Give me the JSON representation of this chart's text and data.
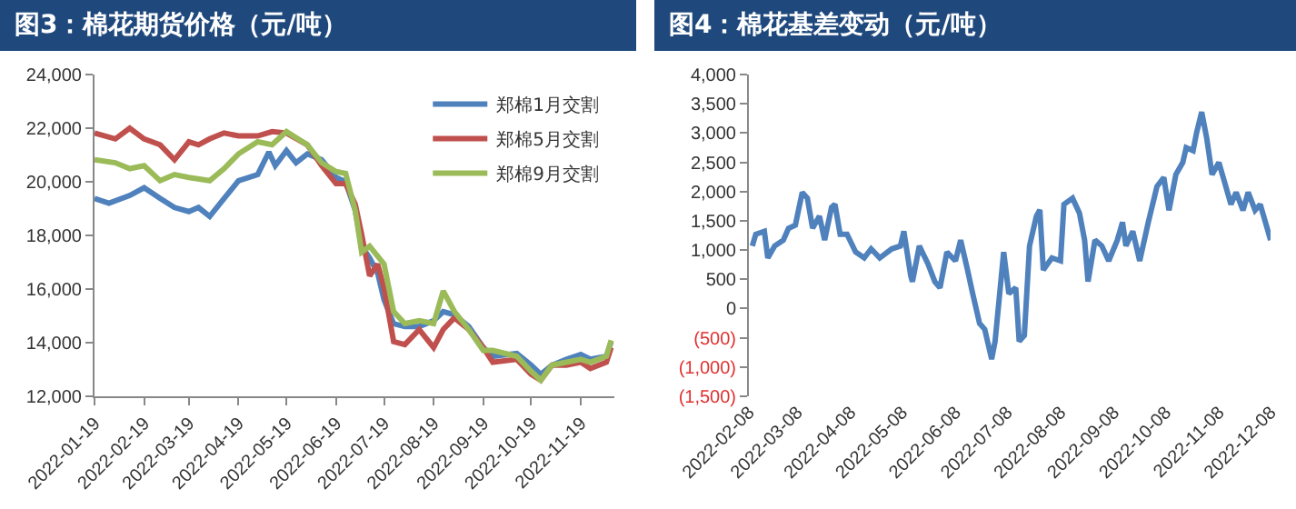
{
  "chart_data": [
    {
      "type": "line",
      "title": "图3：棉花期货价格（元/吨）",
      "legend": "top right",
      "grid": false,
      "xlim": [
        "2022-01-19",
        "2022-12-10"
      ],
      "xticks": [
        {
          "value": "2022-01-19",
          "label": "2022-01-19"
        },
        {
          "value": "2022-02-19",
          "label": "2022-02-19"
        },
        {
          "value": "2022-03-19",
          "label": "2022-03-19"
        },
        {
          "value": "2022-04-19",
          "label": "2022-04-19"
        },
        {
          "value": "2022-05-19",
          "label": "2022-05-19"
        },
        {
          "value": "2022-06-19",
          "label": "2022-06-19"
        },
        {
          "value": "2022-07-19",
          "label": "2022-07-19"
        },
        {
          "value": "2022-08-19",
          "label": "2022-08-19"
        },
        {
          "value": "2022-09-19",
          "label": "2022-09-19"
        },
        {
          "value": "2022-10-19",
          "label": "2022-10-19"
        },
        {
          "value": "2022-11-19",
          "label": "2022-11-19"
        }
      ],
      "ylim": [
        12000,
        24000
      ],
      "yticks": [
        {
          "value": 12000,
          "label": "12,000"
        },
        {
          "value": 14000,
          "label": "14,000"
        },
        {
          "value": 16000,
          "label": "16,000"
        },
        {
          "value": 18000,
          "label": "18,000"
        },
        {
          "value": 20000,
          "label": "20,000"
        },
        {
          "value": 22000,
          "label": "22,000"
        },
        {
          "value": 24000,
          "label": "24,000"
        }
      ],
      "series": [
        {
          "name": "郑棉1月交割",
          "color": "#4f81bd",
          "x": [
            "2022-01-19",
            "2022-01-28",
            "2022-02-10",
            "2022-02-19",
            "2022-03-01",
            "2022-03-10",
            "2022-03-19",
            "2022-03-25",
            "2022-04-01",
            "2022-04-10",
            "2022-04-19",
            "2022-05-01",
            "2022-05-08",
            "2022-05-12",
            "2022-05-19",
            "2022-05-25",
            "2022-06-01",
            "2022-06-10",
            "2022-06-19",
            "2022-06-25",
            "2022-07-01",
            "2022-07-05",
            "2022-07-10",
            "2022-07-15",
            "2022-07-19",
            "2022-07-25",
            "2022-08-01",
            "2022-08-10",
            "2022-08-19",
            "2022-08-25",
            "2022-09-01",
            "2022-09-10",
            "2022-09-19",
            "2022-09-25",
            "2022-10-10",
            "2022-10-19",
            "2022-10-25",
            "2022-11-01",
            "2022-11-10",
            "2022-11-19",
            "2022-11-25",
            "2022-12-05",
            "2022-12-08"
          ],
          "values": [
            19380,
            19200,
            19490,
            19780,
            19380,
            19040,
            18890,
            19040,
            18710,
            19380,
            20040,
            20270,
            21110,
            20600,
            21160,
            20710,
            21040,
            20820,
            20160,
            20000,
            18930,
            17600,
            17160,
            16600,
            15600,
            14710,
            14600,
            14600,
            14820,
            15160,
            15040,
            14600,
            13820,
            13490,
            13600,
            13160,
            12820,
            13160,
            13380,
            13560,
            13380,
            13490,
            14040
          ]
        },
        {
          "name": "郑棉5月交割",
          "color": "#c0504d",
          "x": [
            "2022-01-19",
            "2022-02-01",
            "2022-02-10",
            "2022-02-19",
            "2022-03-01",
            "2022-03-10",
            "2022-03-19",
            "2022-03-25",
            "2022-04-01",
            "2022-04-10",
            "2022-04-19",
            "2022-05-01",
            "2022-05-10",
            "2022-05-19",
            "2022-06-01",
            "2022-06-10",
            "2022-06-19",
            "2022-06-25",
            "2022-07-01",
            "2022-07-05",
            "2022-07-10",
            "2022-07-15",
            "2022-07-19",
            "2022-07-25",
            "2022-08-01",
            "2022-08-10",
            "2022-08-19",
            "2022-08-25",
            "2022-09-01",
            "2022-09-10",
            "2022-09-19",
            "2022-09-25",
            "2022-10-10",
            "2022-10-19",
            "2022-10-25",
            "2022-11-01",
            "2022-11-10",
            "2022-11-19",
            "2022-11-25",
            "2022-12-05",
            "2022-12-08"
          ],
          "values": [
            21820,
            21600,
            22000,
            21600,
            21380,
            20820,
            21490,
            21380,
            21600,
            21820,
            21710,
            21710,
            21870,
            21820,
            21380,
            20600,
            19930,
            19930,
            19160,
            18040,
            16490,
            16930,
            16040,
            14040,
            13930,
            14490,
            13820,
            14490,
            14930,
            14490,
            13820,
            13270,
            13380,
            12820,
            12600,
            13160,
            13160,
            13270,
            13040,
            13270,
            13820
          ]
        },
        {
          "name": "郑棉9月交割",
          "color": "#9bbb59",
          "x": [
            "2022-01-19",
            "2022-02-01",
            "2022-02-10",
            "2022-02-19",
            "2022-03-01",
            "2022-03-10",
            "2022-03-19",
            "2022-04-01",
            "2022-04-10",
            "2022-04-19",
            "2022-05-01",
            "2022-05-10",
            "2022-05-19",
            "2022-06-01",
            "2022-06-10",
            "2022-06-19",
            "2022-06-25",
            "2022-07-01",
            "2022-07-05",
            "2022-07-10",
            "2022-07-19",
            "2022-07-25",
            "2022-08-01",
            "2022-08-10",
            "2022-08-19",
            "2022-08-25",
            "2022-09-01",
            "2022-09-10",
            "2022-09-19",
            "2022-09-25",
            "2022-10-10",
            "2022-10-19",
            "2022-10-25",
            "2022-11-01",
            "2022-11-10",
            "2022-11-19",
            "2022-11-25",
            "2022-12-05",
            "2022-12-08"
          ],
          "values": [
            20820,
            20710,
            20490,
            20600,
            20040,
            20270,
            20160,
            20040,
            20490,
            21040,
            21490,
            21380,
            21870,
            21380,
            20710,
            20380,
            20310,
            18930,
            17380,
            17600,
            16930,
            15160,
            14710,
            14820,
            14710,
            15930,
            15160,
            14490,
            13710,
            13710,
            13490,
            12930,
            12600,
            13160,
            13270,
            13380,
            13270,
            13490,
            14090
          ]
        }
      ]
    },
    {
      "type": "line",
      "title": "图4：棉花基差变动（元/吨）",
      "grid": false,
      "xlim": [
        "2022-02-08",
        "2022-12-08"
      ],
      "xticks": [
        {
          "value": "2022-02-08",
          "label": "2022-02-08"
        },
        {
          "value": "2022-03-08",
          "label": "2022-03-08"
        },
        {
          "value": "2022-04-08",
          "label": "2022-04-08"
        },
        {
          "value": "2022-05-08",
          "label": "2022-05-08"
        },
        {
          "value": "2022-06-08",
          "label": "2022-06-08"
        },
        {
          "value": "2022-07-08",
          "label": "2022-07-08"
        },
        {
          "value": "2022-08-08",
          "label": "2022-08-08"
        },
        {
          "value": "2022-09-08",
          "label": "2022-09-08"
        },
        {
          "value": "2022-10-08",
          "label": "2022-10-08"
        },
        {
          "value": "2022-11-08",
          "label": "2022-11-08"
        },
        {
          "value": "2022-12-08",
          "label": "2022-12-08"
        }
      ],
      "ylim": [
        -1500,
        4000
      ],
      "yticks": [
        {
          "value": -1500,
          "label": "(1,500)"
        },
        {
          "value": -1000,
          "label": "(1,000)"
        },
        {
          "value": -500,
          "label": "(500)"
        },
        0,
        {
          "value": 500,
          "label": "500"
        },
        {
          "value": 1000,
          "label": "1,000"
        },
        {
          "value": 1500,
          "label": "1,500"
        },
        {
          "value": 2000,
          "label": "2,000"
        },
        {
          "value": 2500,
          "label": "2,500"
        },
        {
          "value": 3000,
          "label": "3,000"
        },
        {
          "value": 3500,
          "label": "3,500"
        },
        {
          "value": 4000,
          "label": "4,000"
        }
      ],
      "series": [
        {
          "color": "#4f81bd",
          "x": [
            "2022-02-10",
            "2022-02-12",
            "2022-02-17",
            "2022-02-19",
            "2022-02-23",
            "2022-02-28",
            "2022-03-03",
            "2022-03-07",
            "2022-03-11",
            "2022-03-14",
            "2022-03-17",
            "2022-03-21",
            "2022-03-24",
            "2022-03-28",
            "2022-03-30",
            "2022-04-02",
            "2022-04-06",
            "2022-04-11",
            "2022-04-16",
            "2022-04-20",
            "2022-04-25",
            "2022-05-02",
            "2022-05-07",
            "2022-05-09",
            "2022-05-13",
            "2022-05-14",
            "2022-05-18",
            "2022-05-23",
            "2022-05-27",
            "2022-05-30",
            "2022-06-03",
            "2022-06-08",
            "2022-06-11",
            "2022-06-15",
            "2022-06-18",
            "2022-06-22",
            "2022-06-25",
            "2022-06-29",
            "2022-07-01",
            "2022-07-06",
            "2022-07-09",
            "2022-07-13",
            "2022-07-15",
            "2022-07-18",
            "2022-07-21",
            "2022-07-25",
            "2022-07-27",
            "2022-07-29",
            "2022-08-03",
            "2022-08-08",
            "2022-08-10",
            "2022-08-15",
            "2022-08-19",
            "2022-08-22",
            "2022-08-24",
            "2022-08-28",
            "2022-09-01",
            "2022-09-05",
            "2022-09-10",
            "2022-09-13",
            "2022-09-15",
            "2022-09-19",
            "2022-09-23",
            "2022-09-28",
            "2022-10-03",
            "2022-10-07",
            "2022-10-10",
            "2022-10-14",
            "2022-10-18",
            "2022-10-20",
            "2022-10-24",
            "2022-10-26",
            "2022-10-29",
            "2022-11-01",
            "2022-11-04",
            "2022-11-08",
            "2022-11-11",
            "2022-11-15",
            "2022-11-18",
            "2022-11-22",
            "2022-11-25",
            "2022-11-29",
            "2022-12-02",
            "2022-12-06",
            "2022-12-08"
          ],
          "values": [
            1070,
            1270,
            1320,
            865,
            1070,
            1170,
            1370,
            1425,
            1985,
            1885,
            1375,
            1580,
            1170,
            1730,
            1780,
            1270,
            1270,
            965,
            865,
            1020,
            865,
            1020,
            1070,
            1320,
            560,
            460,
            1070,
            765,
            460,
            355,
            965,
            815,
            1170,
            660,
            255,
            -255,
            -355,
            -865,
            -560,
            965,
            255,
            355,
            -560,
            -460,
            1070,
            1580,
            1685,
            660,
            865,
            815,
            1780,
            1885,
            1630,
            1170,
            460,
            1170,
            1070,
            815,
            1170,
            1475,
            1070,
            1320,
            815,
            1475,
            2085,
            2240,
            1680,
            2290,
            2495,
            2750,
            2700,
            3000,
            3360,
            2900,
            2290,
            2495,
            2190,
            1780,
            1985,
            1680,
            1985,
            1680,
            1780,
            1375,
            1170
          ]
        }
      ]
    }
  ]
}
